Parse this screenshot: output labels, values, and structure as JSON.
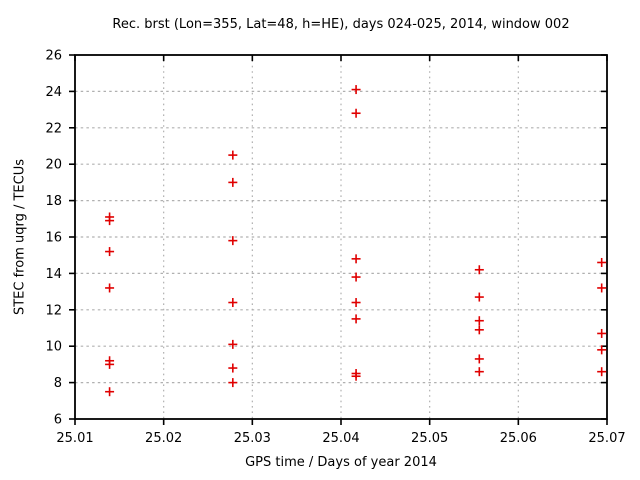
{
  "chart_data": {
    "type": "scatter",
    "title": "Rec. brst (Lon=355, Lat=48, h=HE), days 024-025, 2014, window 002",
    "xlabel": "GPS time / Days of year 2014",
    "ylabel": "STEC from uqrg / TECUs",
    "xlim": [
      25.01,
      25.07
    ],
    "ylim": [
      6,
      26
    ],
    "x_ticks": [
      25.01,
      25.02,
      25.03,
      25.04,
      25.05,
      25.06,
      25.07
    ],
    "x_tick_labels": [
      "25.01",
      "25.02",
      "25.03",
      "25.04",
      "25.05",
      "25.06",
      "25.07"
    ],
    "y_ticks": [
      6,
      8,
      10,
      12,
      14,
      16,
      18,
      20,
      22,
      24,
      26
    ],
    "y_tick_labels": [
      "6",
      "8",
      "10",
      "12",
      "14",
      "16",
      "18",
      "20",
      "22",
      "24",
      "26"
    ],
    "grid": true,
    "legend": "none",
    "marker": {
      "shape": "plus",
      "color": "#e00000",
      "size": 9
    },
    "colors": {
      "border": "#000000",
      "grid": "#b0b0b0",
      "text": "#000000"
    },
    "series": [
      {
        "name": "STEC from uqrg",
        "points": [
          [
            25.0139,
            17.1
          ],
          [
            25.0139,
            16.9
          ],
          [
            25.0139,
            15.2
          ],
          [
            25.0139,
            13.2
          ],
          [
            25.0139,
            9.2
          ],
          [
            25.0139,
            9.0
          ],
          [
            25.0139,
            7.5
          ],
          [
            25.0278,
            20.5
          ],
          [
            25.0278,
            19.0
          ],
          [
            25.0278,
            15.8
          ],
          [
            25.0278,
            12.4
          ],
          [
            25.0278,
            10.1
          ],
          [
            25.0278,
            8.8
          ],
          [
            25.0278,
            8.0
          ],
          [
            25.0417,
            24.1
          ],
          [
            25.0417,
            22.8
          ],
          [
            25.0417,
            14.8
          ],
          [
            25.0417,
            13.8
          ],
          [
            25.0417,
            12.4
          ],
          [
            25.0417,
            11.5
          ],
          [
            25.0417,
            8.5
          ],
          [
            25.0417,
            8.35
          ],
          [
            25.0556,
            14.2
          ],
          [
            25.0556,
            12.7
          ],
          [
            25.0556,
            11.4
          ],
          [
            25.0556,
            10.9
          ],
          [
            25.0556,
            9.3
          ],
          [
            25.0556,
            8.6
          ],
          [
            25.0694,
            14.6
          ],
          [
            25.0694,
            13.2
          ],
          [
            25.0694,
            10.7
          ],
          [
            25.0694,
            9.8
          ],
          [
            25.0694,
            8.6
          ]
        ]
      }
    ]
  }
}
